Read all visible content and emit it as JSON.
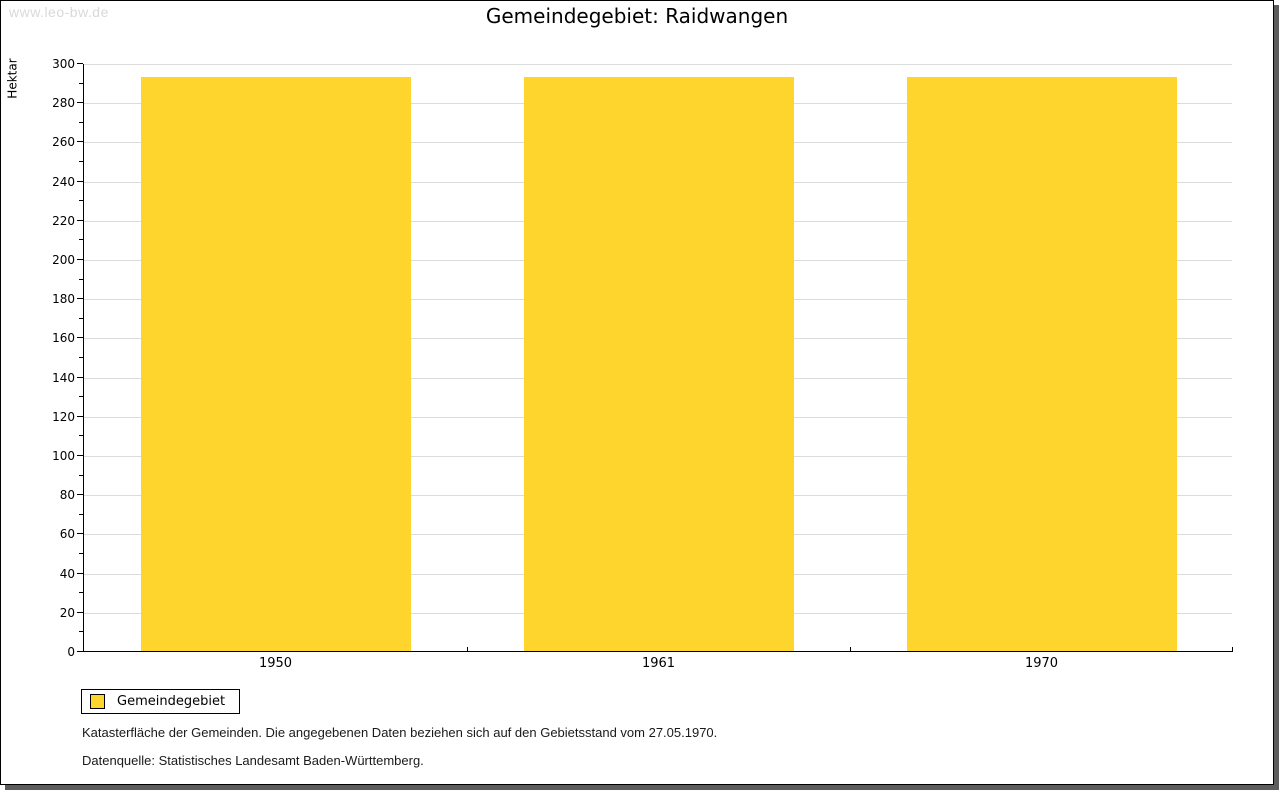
{
  "watermark": "www.leo-bw.de",
  "title": "Gemeindegebiet: Raidwangen",
  "chart_data": {
    "type": "bar",
    "title": "Gemeindegebiet: Raidwangen",
    "categories": [
      "1950",
      "1961",
      "1970"
    ],
    "series": [
      {
        "name": "Gemeindegebiet",
        "color": "#FDD52D",
        "values": [
          293,
          293,
          293
        ]
      }
    ],
    "xlabel": "",
    "ylabel": "Hektar",
    "ylim": [
      0,
      300
    ],
    "ytick_major": 20,
    "ytick_minor": 10,
    "grid": true,
    "legend_entries": [
      "Gemeindegebiet"
    ],
    "legend_position": "bottom-left"
  },
  "legend": {
    "items": [
      {
        "label": "Gemeindegebiet",
        "color": "#FDD52D"
      }
    ]
  },
  "footnotes": {
    "line1": "Katasterfläche der Gemeinden. Die angegebenen Daten beziehen sich auf den Gebietsstand vom 27.05.1970.",
    "line2": "Datenquelle: Statistisches Landesamt Baden-Württemberg."
  },
  "colors": {
    "bar": "#FDD52D",
    "grid": "#DCDCDC",
    "axis": "#000000",
    "watermark": "#D9D9D9",
    "frame_shadow": "#5C5C5C",
    "background": "#FFFFFF"
  }
}
